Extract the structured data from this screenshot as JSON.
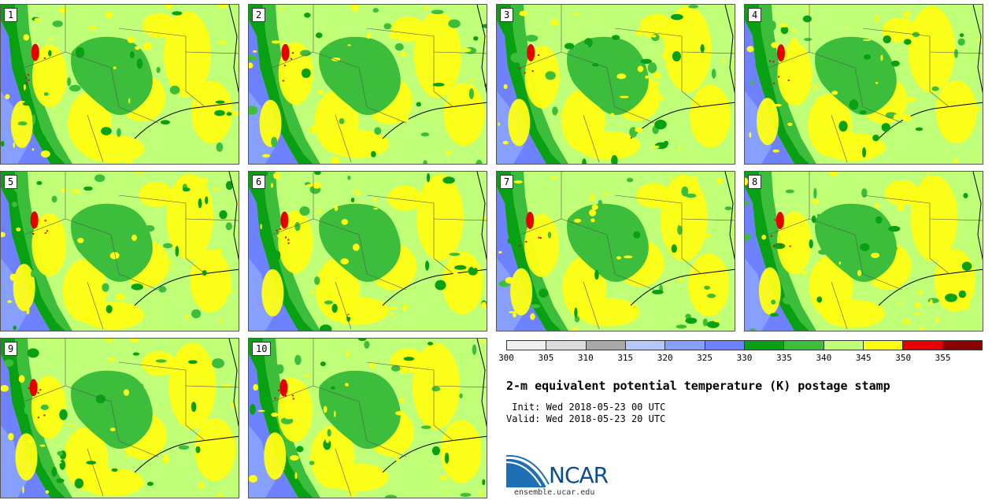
{
  "panels": [
    {
      "label": "1"
    },
    {
      "label": "2"
    },
    {
      "label": "3"
    },
    {
      "label": "4"
    },
    {
      "label": "5"
    },
    {
      "label": "6"
    },
    {
      "label": "7"
    },
    {
      "label": "8"
    },
    {
      "label": "9"
    },
    {
      "label": "10"
    }
  ],
  "legend": {
    "colors": [
      "#f0f0f0",
      "#dcdcdc",
      "#a9a9a9",
      "#b4c8ff",
      "#87a0ff",
      "#6e82ff",
      "#0aa014",
      "#3cbe3c",
      "#c0ff78",
      "#ffff14",
      "#e60000",
      "#8b0000"
    ],
    "ticks": [
      "300",
      "305",
      "310",
      "315",
      "320",
      "325",
      "330",
      "335",
      "340",
      "345",
      "350",
      "355"
    ]
  },
  "title": "2-m equivalent potential temperature (K) postage stamp",
  "init": " Init: Wed 2018-05-23 00 UTC",
  "valid": "Valid: Wed 2018-05-23 20 UTC",
  "logo": {
    "text": "NCAR",
    "url": "ensemble.ucar.edu"
  }
}
